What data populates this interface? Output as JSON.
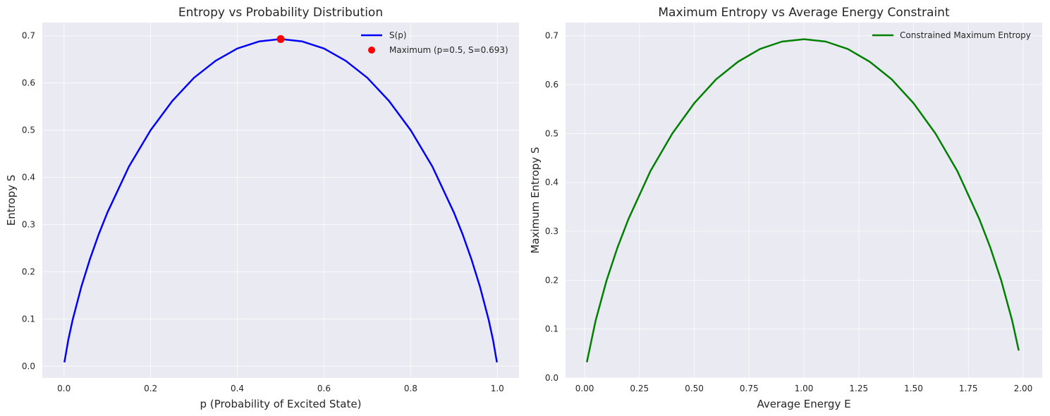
{
  "chart_data": [
    {
      "type": "line",
      "title": "Entropy vs Probability Distribution",
      "xlabel": "p\u0001 (Probability of Excited State)",
      "ylabel": "Entropy S",
      "xlim": [
        -0.05,
        1.05
      ],
      "ylim": [
        -0.025,
        0.728
      ],
      "xticks": [
        0.0,
        0.2,
        0.4,
        0.6,
        0.8,
        1.0
      ],
      "xtick_labels": [
        "0.0",
        "0.2",
        "0.4",
        "0.6",
        "0.8",
        "1.0"
      ],
      "yticks": [
        0.0,
        0.1,
        0.2,
        0.3,
        0.4,
        0.5,
        0.6,
        0.7
      ],
      "ytick_labels": [
        "0.0",
        "0.1",
        "0.2",
        "0.3",
        "0.4",
        "0.5",
        "0.6",
        "0.7"
      ],
      "grid": true,
      "legend_position": "top-right",
      "series": [
        {
          "name": "S(p\u0001)",
          "color": "#0000ff",
          "marker": "line",
          "x": [
            0.001,
            0.01,
            0.02,
            0.04,
            0.06,
            0.08,
            0.1,
            0.15,
            0.2,
            0.25,
            0.3,
            0.35,
            0.4,
            0.45,
            0.5,
            0.55,
            0.6,
            0.65,
            0.7,
            0.75,
            0.8,
            0.85,
            0.9,
            0.92,
            0.94,
            0.96,
            0.98,
            0.99,
            0.999
          ],
          "y": [
            0.008,
            0.056,
            0.098,
            0.168,
            0.227,
            0.279,
            0.325,
            0.423,
            0.5,
            0.562,
            0.611,
            0.647,
            0.673,
            0.688,
            0.693,
            0.688,
            0.673,
            0.647,
            0.611,
            0.562,
            0.5,
            0.423,
            0.325,
            0.279,
            0.227,
            0.168,
            0.098,
            0.056,
            0.008
          ]
        },
        {
          "name": "Maximum (p\u0001=0.5, S=0.693)",
          "color": "#ff0000",
          "marker": "point",
          "x": [
            0.5
          ],
          "y": [
            0.693
          ]
        }
      ]
    },
    {
      "type": "line",
      "title": "Maximum Entropy vs Average Energy Constraint",
      "xlabel": "Average Energy \u0001E\u0001",
      "ylabel": "Maximum Entropy S",
      "xlim": [
        -0.087,
        2.087
      ],
      "ylim": [
        0.0,
        0.727
      ],
      "xticks": [
        0.0,
        0.25,
        0.5,
        0.75,
        1.0,
        1.25,
        1.5,
        1.75,
        2.0
      ],
      "xtick_labels": [
        "0.00",
        "0.25",
        "0.50",
        "0.75",
        "1.00",
        "1.25",
        "1.50",
        "1.75",
        "2.00"
      ],
      "yticks": [
        0.0,
        0.1,
        0.2,
        0.3,
        0.4,
        0.5,
        0.6,
        0.7
      ],
      "ytick_labels": [
        "0.0",
        "0.1",
        "0.2",
        "0.3",
        "0.4",
        "0.5",
        "0.6",
        "0.7"
      ],
      "grid": true,
      "legend_position": "top-right",
      "series": [
        {
          "name": "Constrained Maximum Entropy",
          "color": "#008000",
          "marker": "line",
          "x": [
            0.01,
            0.05,
            0.1,
            0.15,
            0.2,
            0.3,
            0.4,
            0.5,
            0.6,
            0.7,
            0.8,
            0.9,
            1.0,
            1.1,
            1.2,
            1.3,
            1.4,
            1.5,
            1.6,
            1.7,
            1.8,
            1.85,
            1.9,
            1.95,
            1.98
          ],
          "y": [
            0.032,
            0.117,
            0.199,
            0.267,
            0.325,
            0.423,
            0.5,
            0.562,
            0.611,
            0.647,
            0.673,
            0.688,
            0.693,
            0.688,
            0.673,
            0.647,
            0.611,
            0.562,
            0.5,
            0.423,
            0.325,
            0.267,
            0.199,
            0.117,
            0.056
          ]
        }
      ]
    }
  ]
}
